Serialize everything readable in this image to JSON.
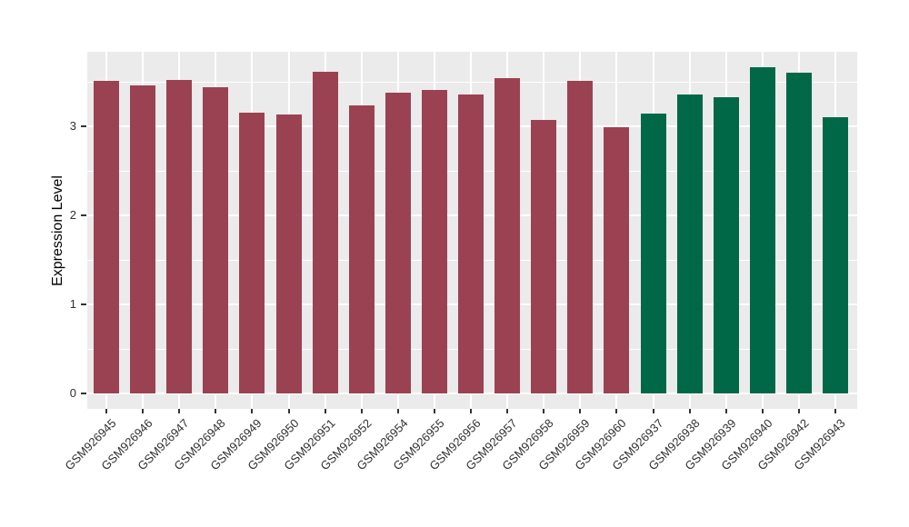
{
  "chart_data": {
    "type": "bar",
    "title": "",
    "xlabel": "",
    "ylabel": "Expression Level",
    "categories": [
      "GSM926945",
      "GSM926946",
      "GSM926947",
      "GSM926948",
      "GSM926949",
      "GSM926950",
      "GSM926951",
      "GSM926952",
      "GSM926954",
      "GSM926955",
      "GSM926956",
      "GSM926957",
      "GSM926958",
      "GSM926959",
      "GSM926960",
      "GSM926937",
      "GSM926938",
      "GSM926939",
      "GSM926940",
      "GSM926942",
      "GSM926943"
    ],
    "values": [
      3.51,
      3.46,
      3.52,
      3.44,
      3.15,
      3.13,
      3.61,
      3.23,
      3.38,
      3.41,
      3.36,
      3.54,
      3.07,
      3.51,
      2.99,
      3.14,
      3.36,
      3.33,
      3.66,
      3.6,
      3.1
    ],
    "groups": [
      "groupA",
      "groupA",
      "groupA",
      "groupA",
      "groupA",
      "groupA",
      "groupA",
      "groupA",
      "groupA",
      "groupA",
      "groupA",
      "groupA",
      "groupA",
      "groupA",
      "groupA",
      "groupB",
      "groupB",
      "groupB",
      "groupB",
      "groupB",
      "groupB"
    ],
    "group_colors": {
      "groupA": "#9B4252",
      "groupB": "#006847"
    },
    "yticks": [
      0,
      1,
      2,
      3
    ],
    "minor_gridlines": [
      0.5,
      1.5,
      2.5,
      3.5
    ],
    "ylim": [
      0,
      3.84
    ],
    "grid": true,
    "legend_position": "none",
    "panel_bg": "#EBEBEB",
    "grid_color": "#FFFFFF",
    "axis_text_color": "#303030"
  }
}
